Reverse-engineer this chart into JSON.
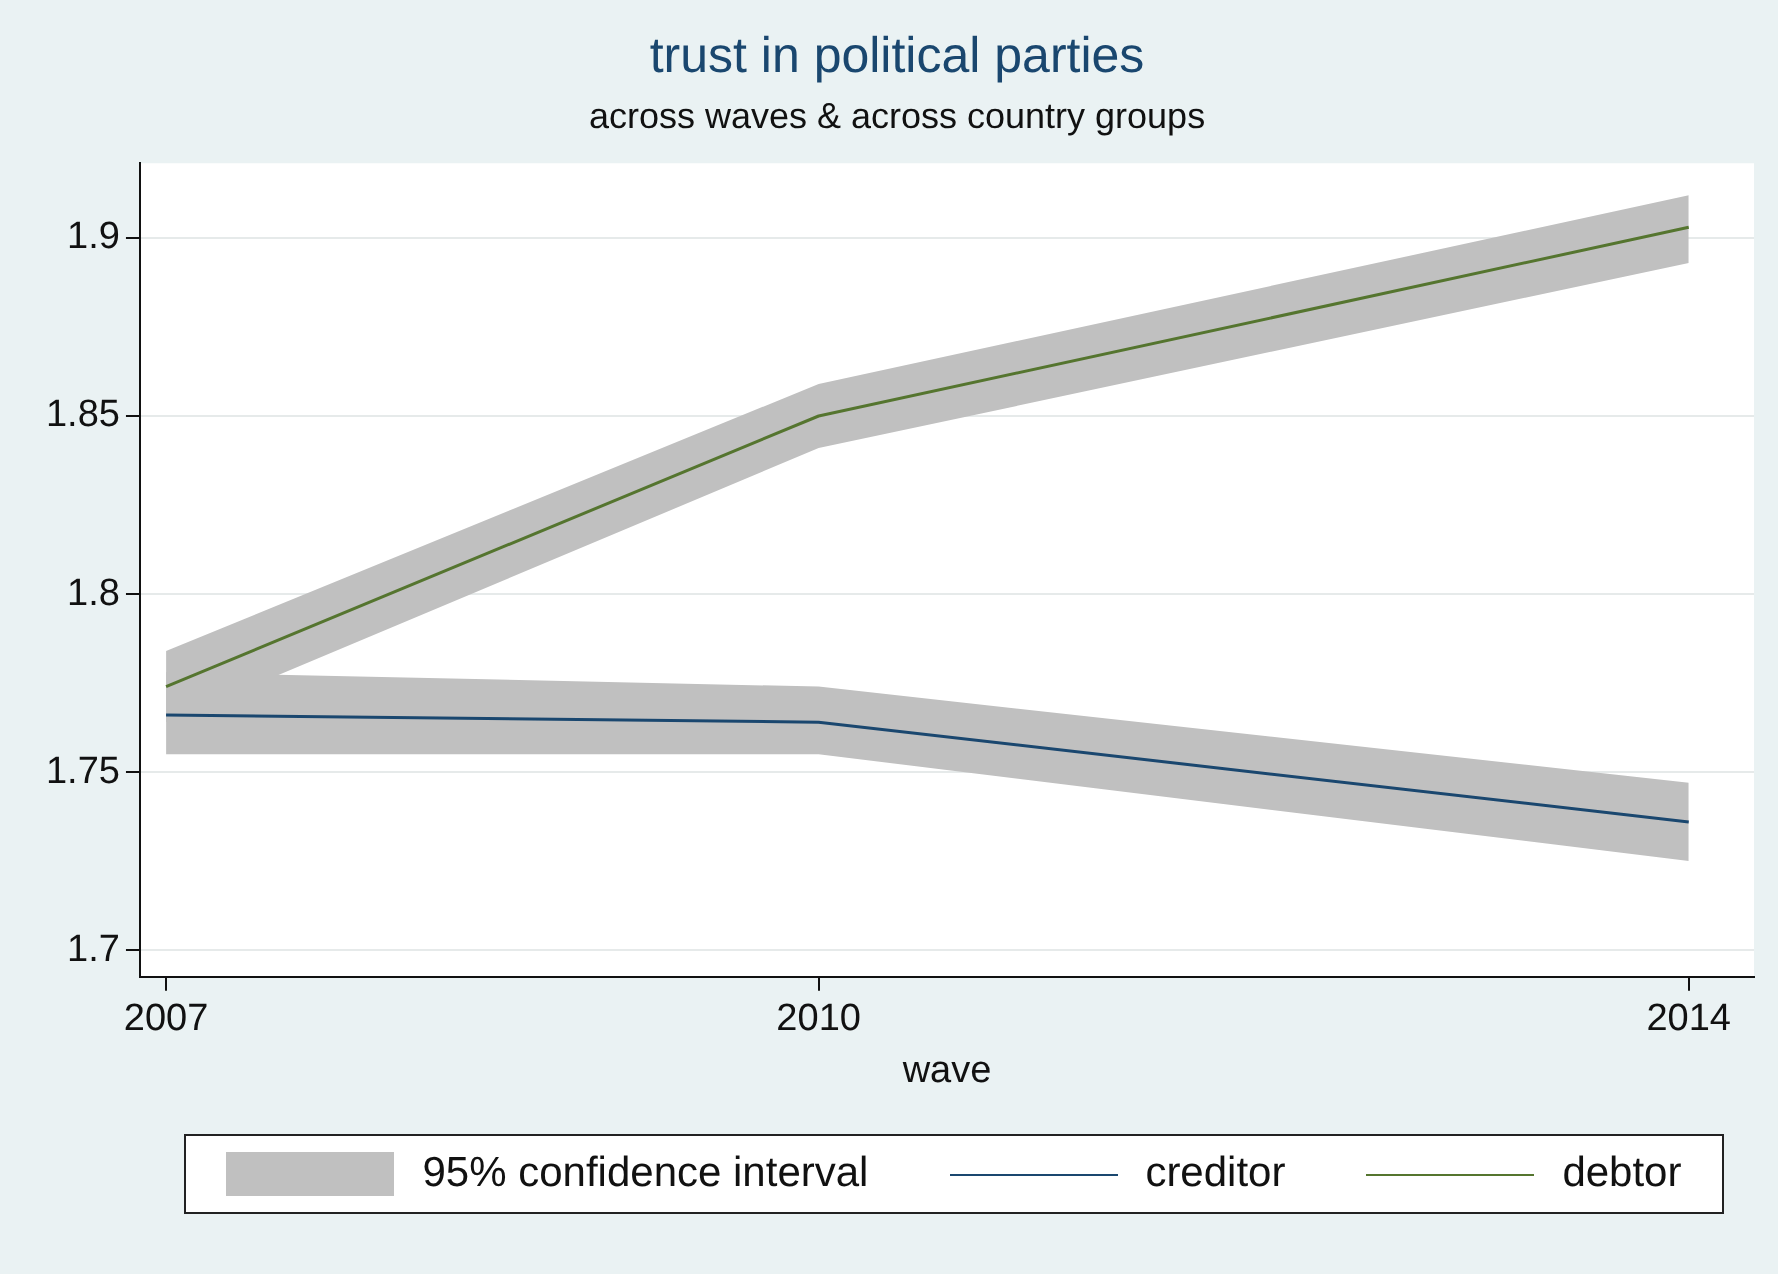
{
  "chart_data": {
    "type": "line",
    "title": "trust in political parties",
    "subtitle": "across waves & across country groups",
    "xlabel": "wave",
    "x": [
      2007,
      2010,
      2014
    ],
    "series": [
      {
        "name": "creditor",
        "color": "#1a476f",
        "values": [
          1.766,
          1.764,
          1.736
        ],
        "lower": [
          1.755,
          1.755,
          1.725
        ],
        "upper": [
          1.778,
          1.774,
          1.747
        ]
      },
      {
        "name": "debtor",
        "color": "#55752f",
        "values": [
          1.774,
          1.85,
          1.903
        ],
        "lower": [
          1.764,
          1.841,
          1.893
        ],
        "upper": [
          1.784,
          1.859,
          1.912
        ]
      }
    ],
    "annotations": [
      "95% confidence interval"
    ],
    "xlim": [
      2006.88,
      2014.3
    ],
    "xticks": [
      2007,
      2010,
      2014
    ],
    "ylim": [
      1.6925,
      1.921
    ],
    "yticks": [
      1.7,
      1.75,
      1.8,
      1.85,
      1.9
    ],
    "grid": "y",
    "legend": "bottom",
    "marker": "none",
    "line_style": "solid"
  }
}
